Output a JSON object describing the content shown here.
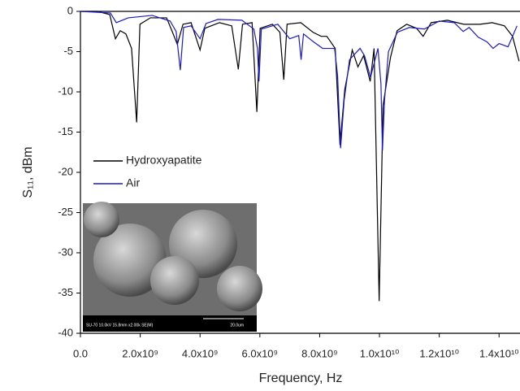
{
  "chart_data": {
    "type": "line",
    "x_label": "Frequency, Hz",
    "y_label": "S₁₁, dBm",
    "legend_position": "center left",
    "inset_caption": "SU-70 10.0kV 15.8mm x2.00k SE(M)",
    "inset_scale": "20.0um",
    "xlim": [
      0,
      14700000000.0
    ],
    "ylim": [
      -40,
      0
    ],
    "xticks": [
      {
        "value": 0,
        "label": "0.0"
      },
      {
        "value": 2000000000.0,
        "label": "2.0x10⁹"
      },
      {
        "value": 4000000000.0,
        "label": "4.0x10⁹"
      },
      {
        "value": 6000000000.0,
        "label": "6.0x10⁹"
      },
      {
        "value": 8000000000.0,
        "label": "8.0x10⁹"
      },
      {
        "value": 10000000000.0,
        "label": "1.0x10¹⁰"
      },
      {
        "value": 12000000000.0,
        "label": "1.2x10¹⁰"
      },
      {
        "value": 14000000000.0,
        "label": "1.4x10¹⁰"
      }
    ],
    "yticks": [
      0,
      -5,
      -10,
      -15,
      -20,
      -25,
      -30,
      -35,
      -40
    ],
    "series": [
      {
        "name": "Hydroxyapatite",
        "color": "#000000",
        "x": [
          0,
          570000000.0,
          980000000.0,
          1170000000.0,
          1330000000.0,
          1520000000.0,
          1710000000.0,
          1880000000.0,
          1990000000.0,
          2340000000.0,
          2880000000.0,
          3080000000.0,
          3240000000.0,
          3430000000.0,
          3700000000.0,
          4000000000.0,
          4160000000.0,
          4650000000.0,
          5060000000.0,
          5280000000.0,
          5420000000.0,
          5740000000.0,
          5900000000.0,
          6010000000.0,
          6420000000.0,
          6670000000.0,
          6800000000.0,
          6910000000.0,
          7370000000.0,
          7780000000.0,
          8050000000.0,
          8240000000.0,
          8520000000.0,
          8680000000.0,
          8840000000.0,
          9090000000.0,
          9280000000.0,
          9470000000.0,
          9690000000.0,
          9820000000.0,
          9990000000.0,
          10120000000.0,
          10370000000.0,
          10590000000.0,
          10910000000.0,
          11240000000.0,
          11460000000.0,
          11730000000.0,
          12270000000.0,
          12820000000.0,
          13360000000.0,
          13770000000.0,
          14180000000.0,
          14450000000.0,
          14670000000.0
        ],
        "values": [
          0,
          0,
          -0.4,
          -3.4,
          -2.4,
          -2.8,
          -4.6,
          -13.8,
          -1.6,
          -0.8,
          -0.8,
          -2.6,
          -4.1,
          -1.6,
          -1.4,
          -4.8,
          -2.1,
          -1.4,
          -1.8,
          -7.2,
          -1.6,
          -1.4,
          -12.5,
          -2.1,
          -1.6,
          -2.6,
          -8.5,
          -1.6,
          -1.4,
          -2.6,
          -3.1,
          -3.1,
          -4.6,
          -16.6,
          -9.7,
          -4.8,
          -6.9,
          -5.5,
          -8.7,
          -4.6,
          -36,
          -11.7,
          -5.7,
          -2.4,
          -1.6,
          -2.1,
          -3.1,
          -1.4,
          -1.1,
          -1.6,
          -1.6,
          -1.4,
          -1.8,
          -3.1,
          -6.2
        ]
      },
      {
        "name": "Air",
        "color": "#1a1acc",
        "x": [
          0,
          1000000000.0,
          1200000000.0,
          1600000000.0,
          2400000000.0,
          3000000000.0,
          3200000000.0,
          3340000000.0,
          3450000000.0,
          3700000000.0,
          4000000000.0,
          4200000000.0,
          4600000000.0,
          5400000000.0,
          5800000000.0,
          5920000000.0,
          5970000000.0,
          6050000000.0,
          6600000000.0,
          7000000000.0,
          7300000000.0,
          7380000000.0,
          7460000000.0,
          7800000000.0,
          8100000000.0,
          8500000000.0,
          8600000000.0,
          8700000000.0,
          8820000000.0,
          9000000000.0,
          9350000000.0,
          9500000000.0,
          9700000000.0,
          9950000000.0,
          10050000000.0,
          10100000000.0,
          10170000000.0,
          10300000000.0,
          10600000000.0,
          11000000000.0,
          11500000000.0,
          12000000000.0,
          12500000000.0,
          12800000000.0,
          13000000000.0,
          13300000000.0,
          13600000000.0,
          13800000000.0,
          14000000000.0,
          14300000000.0,
          14600000000.0
        ],
        "values": [
          0,
          -0.2,
          -1.4,
          -0.8,
          -0.5,
          -1.2,
          -2.5,
          -7.3,
          -2.0,
          -1.8,
          -3.4,
          -1.5,
          -1.0,
          -1.1,
          -2.2,
          -4.6,
          -8.7,
          -2.2,
          -1.6,
          -3.4,
          -3.0,
          -6.0,
          -2.8,
          -3.8,
          -4.6,
          -4.6,
          -8,
          -17.0,
          -11,
          -6,
          -4.6,
          -5.5,
          -8.2,
          -4.6,
          -9,
          -17.3,
          -11,
          -5,
          -2.6,
          -2,
          -2.2,
          -1.2,
          -1.4,
          -2.5,
          -2,
          -3.2,
          -3.8,
          -4.6,
          -4.0,
          -4.4,
          -1.8
        ]
      }
    ]
  }
}
